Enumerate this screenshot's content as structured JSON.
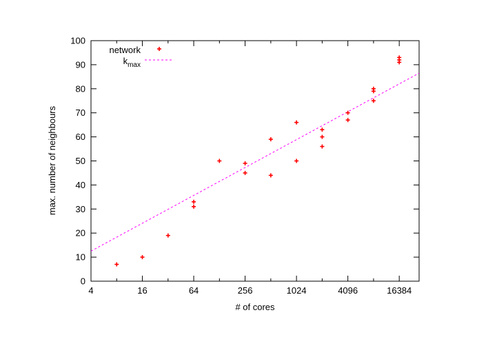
{
  "chart_data": {
    "type": "scatter",
    "title": "",
    "xlabel": "# of cores",
    "ylabel": "max. number of neighbours",
    "x_scale": "log2",
    "xlim": [
      4,
      28000
    ],
    "ylim": [
      0,
      100
    ],
    "x_ticks": [
      4,
      16,
      64,
      256,
      1024,
      4096,
      16384
    ],
    "x_tick_labels": [
      "4",
      "16",
      "64",
      "256",
      "1024",
      "4096",
      "16384"
    ],
    "y_ticks": [
      0,
      10,
      20,
      30,
      40,
      50,
      60,
      70,
      80,
      90,
      100
    ],
    "y_tick_labels": [
      "0",
      "10",
      "20",
      "30",
      "40",
      "50",
      "60",
      "70",
      "80",
      "90",
      "100"
    ],
    "grid": false,
    "legend_position": "top-left",
    "series": [
      {
        "name": "network",
        "kind": "points",
        "marker": "plus",
        "color": "#ff0000",
        "points": [
          [
            8,
            7
          ],
          [
            16,
            10
          ],
          [
            32,
            19
          ],
          [
            64,
            31
          ],
          [
            64,
            33
          ],
          [
            128,
            50
          ],
          [
            256,
            45
          ],
          [
            256,
            49
          ],
          [
            512,
            44
          ],
          [
            512,
            59
          ],
          [
            1024,
            50
          ],
          [
            1024,
            66
          ],
          [
            2048,
            56
          ],
          [
            2048,
            60
          ],
          [
            2048,
            63
          ],
          [
            4096,
            67
          ],
          [
            4096,
            70
          ],
          [
            8192,
            75
          ],
          [
            8192,
            79
          ],
          [
            8192,
            80
          ],
          [
            16384,
            91
          ],
          [
            16384,
            92
          ],
          [
            16384,
            93
          ]
        ]
      },
      {
        "name": "k",
        "name_subscript": "max",
        "kind": "line",
        "style": "dashed",
        "color": "#ff00ff",
        "points": [
          [
            4,
            12.5
          ],
          [
            28000,
            86.5
          ]
        ]
      }
    ]
  }
}
